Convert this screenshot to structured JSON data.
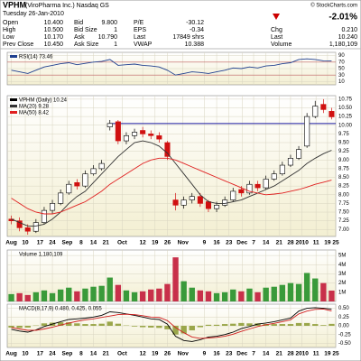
{
  "header": {
    "symbol": "VPHM",
    "company": "(ViroPharma Inc.) Nasdaq GS",
    "credit": "© StockCharts.com",
    "date": "Tuesday 26-Jan-2010",
    "quote": [
      [
        {
          "label": "Open",
          "value": "10.400"
        },
        {
          "label": "High",
          "value": "10.500"
        },
        {
          "label": "Low",
          "value": "10.170"
        },
        {
          "label": "Prev Close",
          "value": "10.450"
        }
      ],
      [
        {
          "label": "Bid",
          "value": "9.800"
        },
        {
          "label": "Bid Size",
          "value": "1"
        },
        {
          "label": "Ask",
          "value": "10.790"
        },
        {
          "label": "Ask Size",
          "value": "1"
        }
      ],
      [
        {
          "label": "P/E",
          "value": "-30.12"
        },
        {
          "label": "EPS",
          "value": "-0.34"
        },
        {
          "label": "Last",
          "value": "17849 shrs"
        },
        {
          "label": "VWAP",
          "value": "10.388"
        }
      ]
    ],
    "change_pct": "-2.01%",
    "summary": [
      {
        "label": "Chg",
        "value": "0.210"
      },
      {
        "label": "Last",
        "value": "10.240"
      },
      {
        "label": "Volume",
        "value": "1,180,109"
      }
    ]
  },
  "chart_data": [
    {
      "type": "line",
      "xlim": [
        -0.5,
        39.5
      ],
      "ylim": [
        0,
        100
      ],
      "yticks": [
        10,
        30,
        50,
        70,
        90
      ],
      "levels": [
        30,
        70
      ],
      "series": [
        {
          "name": "RSI(14) 73.46",
          "color": "#1f3f8f",
          "values": [
            45,
            40,
            35,
            45,
            55,
            60,
            65,
            68,
            62,
            66,
            70,
            72,
            78,
            60,
            62,
            64,
            60,
            58,
            55,
            45,
            30,
            35,
            40,
            38,
            35,
            40,
            45,
            52,
            50,
            55,
            52,
            58,
            60,
            65,
            68,
            78,
            80,
            78,
            74,
            73.46
          ]
        }
      ]
    },
    {
      "type": "candlestick",
      "title": "VPHM (Daily) 10.24",
      "xlim": [
        -0.5,
        39.5
      ],
      "ylim": [
        6.8,
        10.85
      ],
      "grid": true,
      "up_color": "#000000",
      "down_color": "#d01010",
      "yticks": [
        {
          "value": 7,
          "label": "7.00"
        },
        7.25,
        {
          "value": 7.5,
          "label": "7.50"
        },
        7.75,
        {
          "value": 8,
          "label": "8.00"
        },
        8.25,
        {
          "value": 8.5,
          "label": "8.50"
        },
        8.75,
        {
          "value": 9,
          "label": "9.00"
        },
        9.25,
        {
          "value": 9.5,
          "label": "9.50"
        },
        9.75,
        {
          "value": 10,
          "label": "10.00"
        },
        10.25,
        {
          "value": 10.5,
          "label": "10.50"
        },
        10.75
      ],
      "xticks": [
        {
          "value": 0,
          "label": "Aug"
        },
        {
          "value": 1.7,
          "label": "10"
        },
        {
          "value": 3.5,
          "label": "17"
        },
        {
          "value": 5,
          "label": "24"
        },
        {
          "value": 6.8,
          "label": "Sep"
        },
        {
          "value": 8.5,
          "label": "8"
        },
        {
          "value": 10,
          "label": "14"
        },
        {
          "value": 11.5,
          "label": "21"
        },
        {
          "value": 13.5,
          "label": "Oct"
        },
        {
          "value": 16,
          "label": "12"
        },
        {
          "value": 17.5,
          "label": "19"
        },
        {
          "value": 19,
          "label": "26"
        },
        {
          "value": 20.9,
          "label": "Nov"
        },
        {
          "value": 23.5,
          "label": "9"
        },
        {
          "value": 25,
          "label": "16"
        },
        {
          "value": 26.5,
          "label": "23"
        },
        {
          "value": 28.1,
          "label": "Dec"
        },
        {
          "value": 29.5,
          "label": "7"
        },
        {
          "value": 31,
          "label": "14"
        },
        {
          "value": 32.6,
          "label": "21"
        },
        {
          "value": 34,
          "label": "28"
        },
        {
          "value": 35.4,
          "label": "2010"
        },
        {
          "value": 37.1,
          "label": "11"
        },
        {
          "value": 38.5,
          "label": "19"
        },
        {
          "value": 39.5,
          "label": "25"
        }
      ],
      "open": [
        7.3,
        7.25,
        7.05,
        6.95,
        7.2,
        7.55,
        7.75,
        8.05,
        8.35,
        8.25,
        8.6,
        8.75,
        9.95,
        10.1,
        9.55,
        9.7,
        9.85,
        9.75,
        9.7,
        9.5,
        7.85,
        7.7,
        7.85,
        7.95,
        7.8,
        7.6,
        7.7,
        7.85,
        8.15,
        8.05,
        8.3,
        8.2,
        8.45,
        8.6,
        8.85,
        9.05,
        9.4,
        10.25,
        10.6,
        10.4
      ],
      "high": [
        7.4,
        7.35,
        7.15,
        7.3,
        7.65,
        7.85,
        8.15,
        8.4,
        8.45,
        8.7,
        8.85,
        9.0,
        10.15,
        10.15,
        9.8,
        9.9,
        9.95,
        9.85,
        9.8,
        9.55,
        8.05,
        7.95,
        8.05,
        8.05,
        7.85,
        7.8,
        7.95,
        8.2,
        8.25,
        8.4,
        8.4,
        8.55,
        8.7,
        8.95,
        9.15,
        9.4,
        10.35,
        10.7,
        10.75,
        10.5
      ],
      "low": [
        7.15,
        6.95,
        6.85,
        6.9,
        7.15,
        7.45,
        7.7,
        8.0,
        8.15,
        8.2,
        8.55,
        8.7,
        9.85,
        9.45,
        9.45,
        9.6,
        9.65,
        9.6,
        9.5,
        9.0,
        7.55,
        7.6,
        7.75,
        7.65,
        7.5,
        7.5,
        7.65,
        7.8,
        7.95,
        8.0,
        8.1,
        8.15,
        8.4,
        8.55,
        8.8,
        9.0,
        9.35,
        10.2,
        10.35,
        10.17
      ],
      "close": [
        7.25,
        7.05,
        6.95,
        7.2,
        7.55,
        7.75,
        8.05,
        8.3,
        8.25,
        8.6,
        8.75,
        8.9,
        10.05,
        9.55,
        9.7,
        9.8,
        9.75,
        9.7,
        9.6,
        9.1,
        7.7,
        7.85,
        7.95,
        7.75,
        7.6,
        7.7,
        7.85,
        8.1,
        8.05,
        8.3,
        8.2,
        8.45,
        8.6,
        8.85,
        9.05,
        9.3,
        10.25,
        10.55,
        10.45,
        10.24
      ],
      "level": {
        "value": 10.05,
        "x": [
          12,
          39.5
        ],
        "color": "#1a1aa0"
      },
      "series": [
        {
          "name": "MA(20) 9.28",
          "color": "#333333",
          "values": [
            7.3,
            7.2,
            7.1,
            7.1,
            7.15,
            7.3,
            7.5,
            7.75,
            7.95,
            8.1,
            8.35,
            8.6,
            8.85,
            9.1,
            9.3,
            9.5,
            9.55,
            9.5,
            9.4,
            9.2,
            8.9,
            8.6,
            8.3,
            8.0,
            7.8,
            7.75,
            7.75,
            7.8,
            7.85,
            7.95,
            8.05,
            8.15,
            8.25,
            8.4,
            8.55,
            8.7,
            8.9,
            9.05,
            9.18,
            9.28
          ]
        },
        {
          "name": "MA(50) 8.42",
          "color": "#e02020",
          "values": [
            7.9,
            7.75,
            7.6,
            7.5,
            7.45,
            7.45,
            7.5,
            7.6,
            7.7,
            7.8,
            7.95,
            8.1,
            8.3,
            8.45,
            8.6,
            8.75,
            8.9,
            9.0,
            9.05,
            9.05,
            9.0,
            8.9,
            8.8,
            8.7,
            8.6,
            8.5,
            8.4,
            8.3,
            8.2,
            8.1,
            8.05,
            8.0,
            8.02,
            8.05,
            8.1,
            8.15,
            8.22,
            8.3,
            8.36,
            8.42
          ]
        }
      ]
    },
    {
      "type": "bar",
      "xlim": [
        -0.5,
        39.5
      ],
      "ylim": [
        0,
        5.6
      ],
      "grid": true,
      "up_color": "#3a9a3a",
      "down_color": "#c8304a",
      "yticks": [
        {
          "value": 1,
          "label": "1M"
        },
        {
          "value": 2,
          "label": "2M"
        },
        {
          "value": 3,
          "label": "3M"
        },
        {
          "value": 4,
          "label": "4M"
        },
        {
          "value": 5,
          "label": "5M"
        }
      ],
      "series": [
        {
          "name": "Volume 1,180,109",
          "values": [
            0.8,
            0.9,
            0.7,
            1.0,
            1.2,
            0.9,
            1.3,
            1.5,
            1.1,
            1.4,
            1.6,
            1.7,
            2.6,
            1.8,
            1.2,
            1.0,
            1.1,
            1.3,
            1.4,
            1.9,
            4.8,
            2.2,
            1.5,
            1.2,
            1.1,
            0.9,
            1.0,
            1.3,
            1.1,
            1.4,
            1.0,
            1.5,
            1.6,
            1.8,
            2.0,
            1.9,
            3.1,
            2.5,
            2.0,
            1.18
          ]
        }
      ]
    },
    {
      "type": "line",
      "xlim": [
        -0.5,
        39.5
      ],
      "ylim": [
        -0.62,
        0.62
      ],
      "grid": true,
      "yticks": [
        {
          "value": -0.5,
          "label": "-0.50"
        },
        -0.25,
        {
          "value": 0,
          "label": "0.00"
        },
        0.25,
        {
          "value": 0.5,
          "label": "0.50"
        }
      ],
      "xticks": [
        {
          "value": 0,
          "label": "Aug"
        },
        {
          "value": 1.7,
          "label": "10"
        },
        {
          "value": 3.5,
          "label": "17"
        },
        {
          "value": 5,
          "label": "24"
        },
        {
          "value": 6.8,
          "label": "Sep"
        },
        {
          "value": 8.5,
          "label": "8"
        },
        {
          "value": 10,
          "label": "14"
        },
        {
          "value": 11.5,
          "label": "21"
        },
        {
          "value": 13.5,
          "label": "Oct"
        },
        {
          "value": 16,
          "label": "12"
        },
        {
          "value": 17.5,
          "label": "19"
        },
        {
          "value": 19,
          "label": "26"
        },
        {
          "value": 20.9,
          "label": "Nov"
        },
        {
          "value": 23.5,
          "label": "9"
        },
        {
          "value": 25,
          "label": "16"
        },
        {
          "value": 26.5,
          "label": "23"
        },
        {
          "value": 28.1,
          "label": "Dec"
        },
        {
          "value": 29.5,
          "label": "7"
        },
        {
          "value": 31,
          "label": "14"
        },
        {
          "value": 32.6,
          "label": "21"
        },
        {
          "value": 34,
          "label": "28"
        },
        {
          "value": 35.4,
          "label": "2010"
        },
        {
          "value": 37.1,
          "label": "11"
        },
        {
          "value": 38.5,
          "label": "19"
        },
        {
          "value": 39.5,
          "label": "25"
        }
      ],
      "title": "MACD(8,17,9) 0.480, 0.425, 0.055",
      "series": [
        {
          "color": "#9aa64a",
          "style": "histogram",
          "values": [
            -0.05,
            -0.06,
            -0.05,
            0.01,
            0.07,
            0.09,
            0.1,
            0.1,
            0.07,
            0.05,
            0.05,
            0.06,
            0.12,
            0.06,
            0.01,
            -0.02,
            -0.04,
            -0.05,
            -0.06,
            -0.1,
            -0.25,
            -0.22,
            -0.13,
            -0.04,
            0.03,
            0.03,
            0.05,
            0.06,
            0.08,
            0.07,
            0.07,
            0.05,
            0.05,
            0.05,
            0.05,
            0.08,
            0.08,
            0.05,
            0.02,
            0.055
          ]
        },
        {
          "color": "#000000",
          "values": [
            -0.1,
            -0.15,
            -0.18,
            -0.12,
            -0.02,
            0.05,
            0.12,
            0.18,
            0.2,
            0.22,
            0.25,
            0.3,
            0.4,
            0.38,
            0.34,
            0.3,
            0.25,
            0.2,
            0.18,
            0.05,
            -0.3,
            -0.42,
            -0.45,
            -0.4,
            -0.32,
            -0.3,
            -0.25,
            -0.18,
            -0.08,
            -0.02,
            0.05,
            0.08,
            0.12,
            0.17,
            0.22,
            0.42,
            0.5,
            0.52,
            0.5,
            0.48
          ]
        },
        {
          "color": "#d02020",
          "values": [
            -0.05,
            -0.09,
            -0.13,
            -0.13,
            -0.09,
            -0.04,
            0.02,
            0.08,
            0.13,
            0.17,
            0.2,
            0.24,
            0.28,
            0.32,
            0.33,
            0.32,
            0.29,
            0.25,
            0.24,
            0.15,
            -0.05,
            -0.2,
            -0.32,
            -0.36,
            -0.35,
            -0.33,
            -0.3,
            -0.24,
            -0.16,
            -0.09,
            -0.02,
            0.03,
            0.07,
            0.12,
            0.17,
            0.34,
            0.42,
            0.47,
            0.48,
            0.425
          ]
        }
      ]
    }
  ]
}
